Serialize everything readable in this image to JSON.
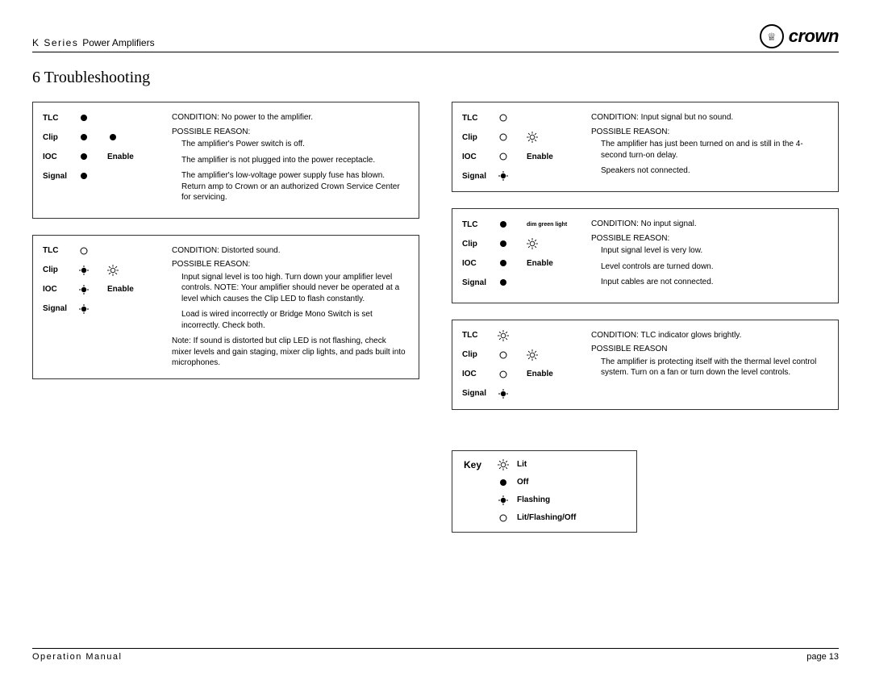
{
  "header": {
    "series": "K Series",
    "product": "Power Amplifiers",
    "brand": "crown"
  },
  "section": {
    "number": "6",
    "title": "Troubleshooting"
  },
  "panels": {
    "p1": {
      "tlc": "off",
      "clip": "off",
      "ioc": "off",
      "signal": "off",
      "enable_icon": "off",
      "enable": "Enable",
      "condition": "CONDITION: No power to the amplifier.",
      "pr": "POSSIBLE REASON:",
      "reasons": [
        "The amplifier's Power switch is off.",
        "The amplifier is not plugged into the power receptacle.",
        "The amplifier's low-voltage power supply fuse has blown. Return amp to Crown or an authorized Crown Service Center for servicing."
      ]
    },
    "p2": {
      "tlc": "open",
      "clip": "flashing",
      "ioc": "flashing",
      "signal": "flashing",
      "enable_icon": "lit",
      "enable": "Enable",
      "condition": "CONDITION: Distorted sound.",
      "pr": "POSSIBLE REASON:",
      "reasons": [
        "Input signal level is too high. Turn down your amplifier level controls. NOTE: Your amplifier should never be operated at a level which causes the Clip LED to flash constantly.",
        "Load is wired incorrectly or Bridge Mono Switch is set incorrectly. Check both."
      ],
      "note": "Note: If sound is distorted but clip LED is not flashing, check mixer levels and gain staging, mixer clip lights, and pads built into microphones."
    },
    "p3": {
      "tlc": "open",
      "clip": "open",
      "ioc": "open",
      "signal": "flashing",
      "enable_icon": "lit",
      "enable": "Enable",
      "condition": "CONDITION: Input signal but no sound.",
      "pr": "POSSIBLE REASON:",
      "reasons": [
        "The amplifier has just been turned on and is still in the 4-second turn-on delay.",
        "Speakers not connected."
      ]
    },
    "p4": {
      "tlc": "off",
      "clip": "off",
      "ioc": "off",
      "signal": "off",
      "enable_icon": "lit",
      "enable": "Enable",
      "dim": "dim green light",
      "condition": "CONDITION: No input signal.",
      "pr": "POSSIBLE REASON:",
      "reasons": [
        "Input signal level is very low.",
        "Level controls are turned down.",
        "Input cables are not connected."
      ]
    },
    "p5": {
      "tlc": "lit",
      "clip": "open",
      "ioc": "open",
      "signal": "flashing",
      "enable_icon": "lit",
      "enable": "Enable",
      "condition": "CONDITION: TLC indicator glows brightly.",
      "pr": "POSSIBLE REASON",
      "reasons": [
        "The amplifier is protecting itself with the thermal level control system. Turn on a fan or turn down the level controls."
      ]
    }
  },
  "key": {
    "title": "Key",
    "items": {
      "lit": "Lit",
      "off": "Off",
      "flashing": "Flashing",
      "open": "Lit/Flashing/Off"
    }
  },
  "footer": {
    "left": "Operation Manual",
    "right": "page 13"
  },
  "labels": {
    "tlc": "TLC",
    "clip": "Clip",
    "ioc": "IOC",
    "signal": "Signal"
  }
}
